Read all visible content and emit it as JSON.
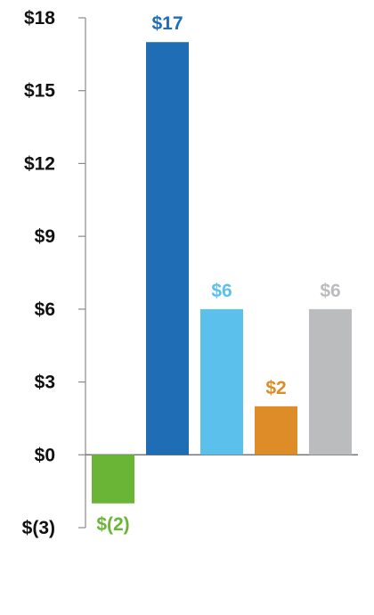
{
  "chart_data": {
    "type": "bar",
    "categories": [
      "",
      "",
      "",
      "",
      ""
    ],
    "values": [
      -2,
      17,
      6,
      2,
      6
    ],
    "data_labels": [
      "$(2)",
      "$17",
      "$6",
      "$2",
      "$6"
    ],
    "colors": [
      "#6ab536",
      "#1f6eb5",
      "#5cc0ec",
      "#de8c27",
      "#bbbcbe"
    ],
    "ylim": [
      -3,
      18
    ],
    "yticks": [
      18,
      15,
      12,
      9,
      6,
      3,
      0,
      -3
    ],
    "ytick_labels": [
      "$18",
      "$15",
      "$12",
      "$9",
      "$6",
      "$3",
      "$0",
      "$(3)"
    ],
    "title": "",
    "xlabel": "",
    "ylabel": "",
    "grid": false,
    "legend": "none"
  }
}
